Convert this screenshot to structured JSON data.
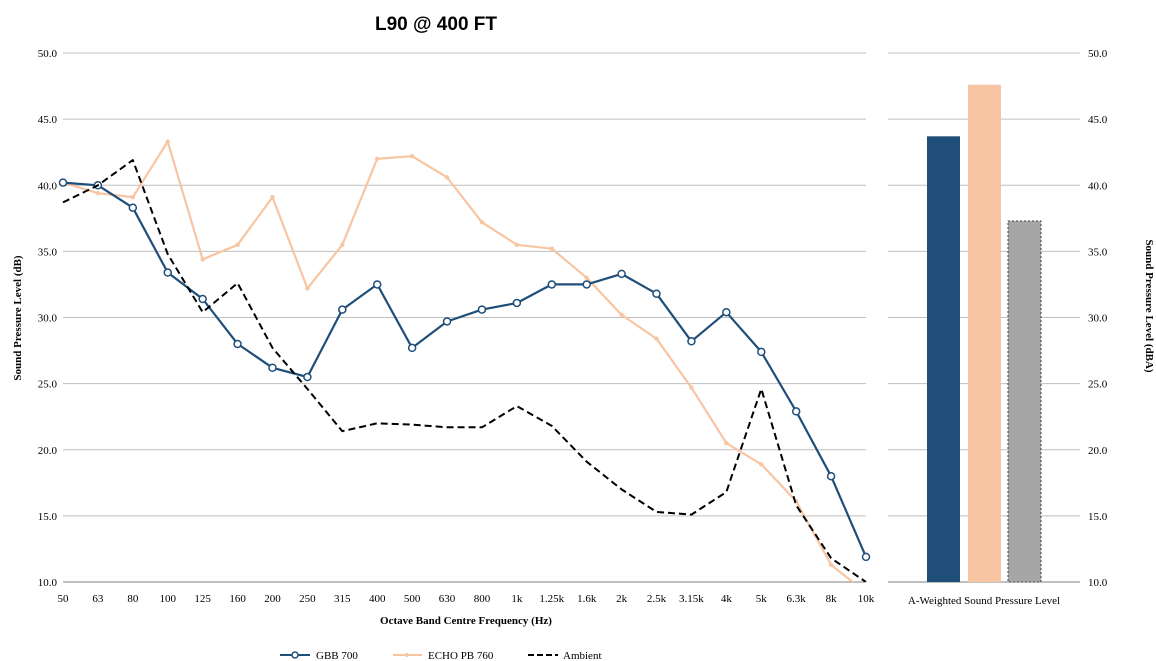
{
  "chart_data": [
    {
      "type": "line",
      "title": "L90 @ 400 FT",
      "xlabel": "Octave Band Centre Frequency (Hz)",
      "ylabel": "Sound Pressure Level (dB)",
      "ylim": [
        10,
        50
      ],
      "yticks": [
        "10.0",
        "15.0",
        "20.0",
        "25.0",
        "30.0",
        "35.0",
        "40.0",
        "45.0",
        "50.0"
      ],
      "grid": true,
      "legend_position": "bottom",
      "categories": [
        "50",
        "63",
        "80",
        "100",
        "125",
        "160",
        "200",
        "250",
        "315",
        "400",
        "500",
        "630",
        "800",
        "1k",
        "1.25k",
        "1.6k",
        "2k",
        "2.5k",
        "3.15k",
        "4k",
        "5k",
        "6.3k",
        "8k",
        "10k"
      ],
      "series": [
        {
          "name": "GBB 700",
          "color": "#1f4e79",
          "marker": "open-circle",
          "dash": "solid",
          "values": [
            40.2,
            40.0,
            38.3,
            33.4,
            31.4,
            28.0,
            26.2,
            25.5,
            30.6,
            32.5,
            27.7,
            29.7,
            30.6,
            31.1,
            32.5,
            32.5,
            33.3,
            31.8,
            28.2,
            30.4,
            27.4,
            22.9,
            18.0,
            11.9
          ]
        },
        {
          "name": "ECHO PB 760",
          "color": "#f8c5a2",
          "marker": "small-dot",
          "dash": "solid",
          "values": [
            40.2,
            39.4,
            39.1,
            43.3,
            34.4,
            35.5,
            39.1,
            32.2,
            35.5,
            42.0,
            42.2,
            40.6,
            37.2,
            35.5,
            35.2,
            33.0,
            30.2,
            28.4,
            24.7,
            20.5,
            18.9,
            16.1,
            11.3,
            9.2
          ]
        },
        {
          "name": "Ambient",
          "color": "#000000",
          "marker": "none",
          "dash": "dashed",
          "values": [
            38.7,
            40.0,
            41.9,
            34.8,
            30.4,
            32.6,
            27.7,
            24.6,
            21.4,
            22.0,
            21.9,
            21.7,
            21.7,
            23.3,
            21.8,
            19.1,
            17.0,
            15.3,
            15.1,
            16.8,
            24.6,
            15.8,
            11.8,
            10.0
          ]
        }
      ]
    },
    {
      "type": "bar",
      "xlabel": "A-Weighted Sound Pressure Level",
      "ylabel": "Sound Pressure Level (dBA)",
      "ylim": [
        10,
        50
      ],
      "yticks": [
        "10.0",
        "15.0",
        "20.0",
        "25.0",
        "30.0",
        "35.0",
        "40.0",
        "45.0",
        "50.0"
      ],
      "series": [
        {
          "name": "GBB 700",
          "value": 43.7,
          "color": "#1f4e79"
        },
        {
          "name": "ECHO PB 760",
          "value": 47.6,
          "color": "#f8c5a2"
        },
        {
          "name": "Ambient",
          "value": 37.3,
          "color": "#a6a6a6"
        }
      ]
    }
  ],
  "legend": [
    {
      "label": "GBB 700",
      "color": "#1f4e79",
      "style": "open-circle"
    },
    {
      "label": "ECHO PB 760",
      "color": "#f8c5a2",
      "style": "small-dot"
    },
    {
      "label": "Ambient",
      "color": "#000000",
      "style": "dashed"
    }
  ]
}
